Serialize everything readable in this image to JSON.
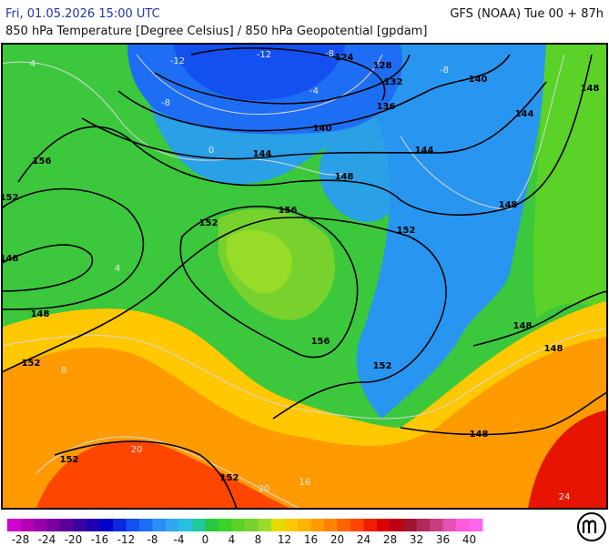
{
  "header": {
    "title": "Fri, 01.05.2026 15:00 UTC",
    "model": "GFS (NOAA) Tue 00 + 87h",
    "subtitle": "850 hPa Temperature [Degree Celsius] / 850 hPa Geopotential [gpdam]"
  },
  "map": {
    "geopotential_labels": [
      "124",
      "128",
      "132",
      "136",
      "140",
      "140",
      "144",
      "144",
      "144",
      "148",
      "148",
      "148",
      "148",
      "148",
      "148",
      "148",
      "148",
      "152",
      "152",
      "152",
      "152",
      "152",
      "152",
      "152",
      "156",
      "156",
      "156"
    ],
    "temperature_labels": [
      "-12",
      "-12",
      "-8",
      "-8",
      "-8",
      "-4",
      "0",
      "4",
      "4",
      "8",
      "20",
      "20",
      "24",
      "16"
    ]
  },
  "colorbar": {
    "ticks": [
      -28,
      -24,
      -20,
      -16,
      -12,
      -8,
      -4,
      0,
      4,
      8,
      12,
      16,
      20,
      24,
      28,
      32,
      36,
      40
    ],
    "colors": [
      "#d000d0",
      "#b400b4",
      "#9600aa",
      "#7800a0",
      "#5a0096",
      "#3c00a0",
      "#1e00b4",
      "#0000c8",
      "#0a28dc",
      "#1450f0",
      "#1e6ef5",
      "#2890f5",
      "#30a8f0",
      "#28c0e0",
      "#20c8a0",
      "#28c83c",
      "#3cd228",
      "#5ad228",
      "#78d22d",
      "#96dc28",
      "#e6dc00",
      "#ffc800",
      "#ffb400",
      "#ff9b00",
      "#ff8200",
      "#ff6400",
      "#ff4600",
      "#f01e00",
      "#dc0000",
      "#be0014",
      "#a0142d",
      "#b4285a",
      "#c83c82",
      "#e650b4",
      "#ff5adc",
      "#ff64f0"
    ]
  }
}
